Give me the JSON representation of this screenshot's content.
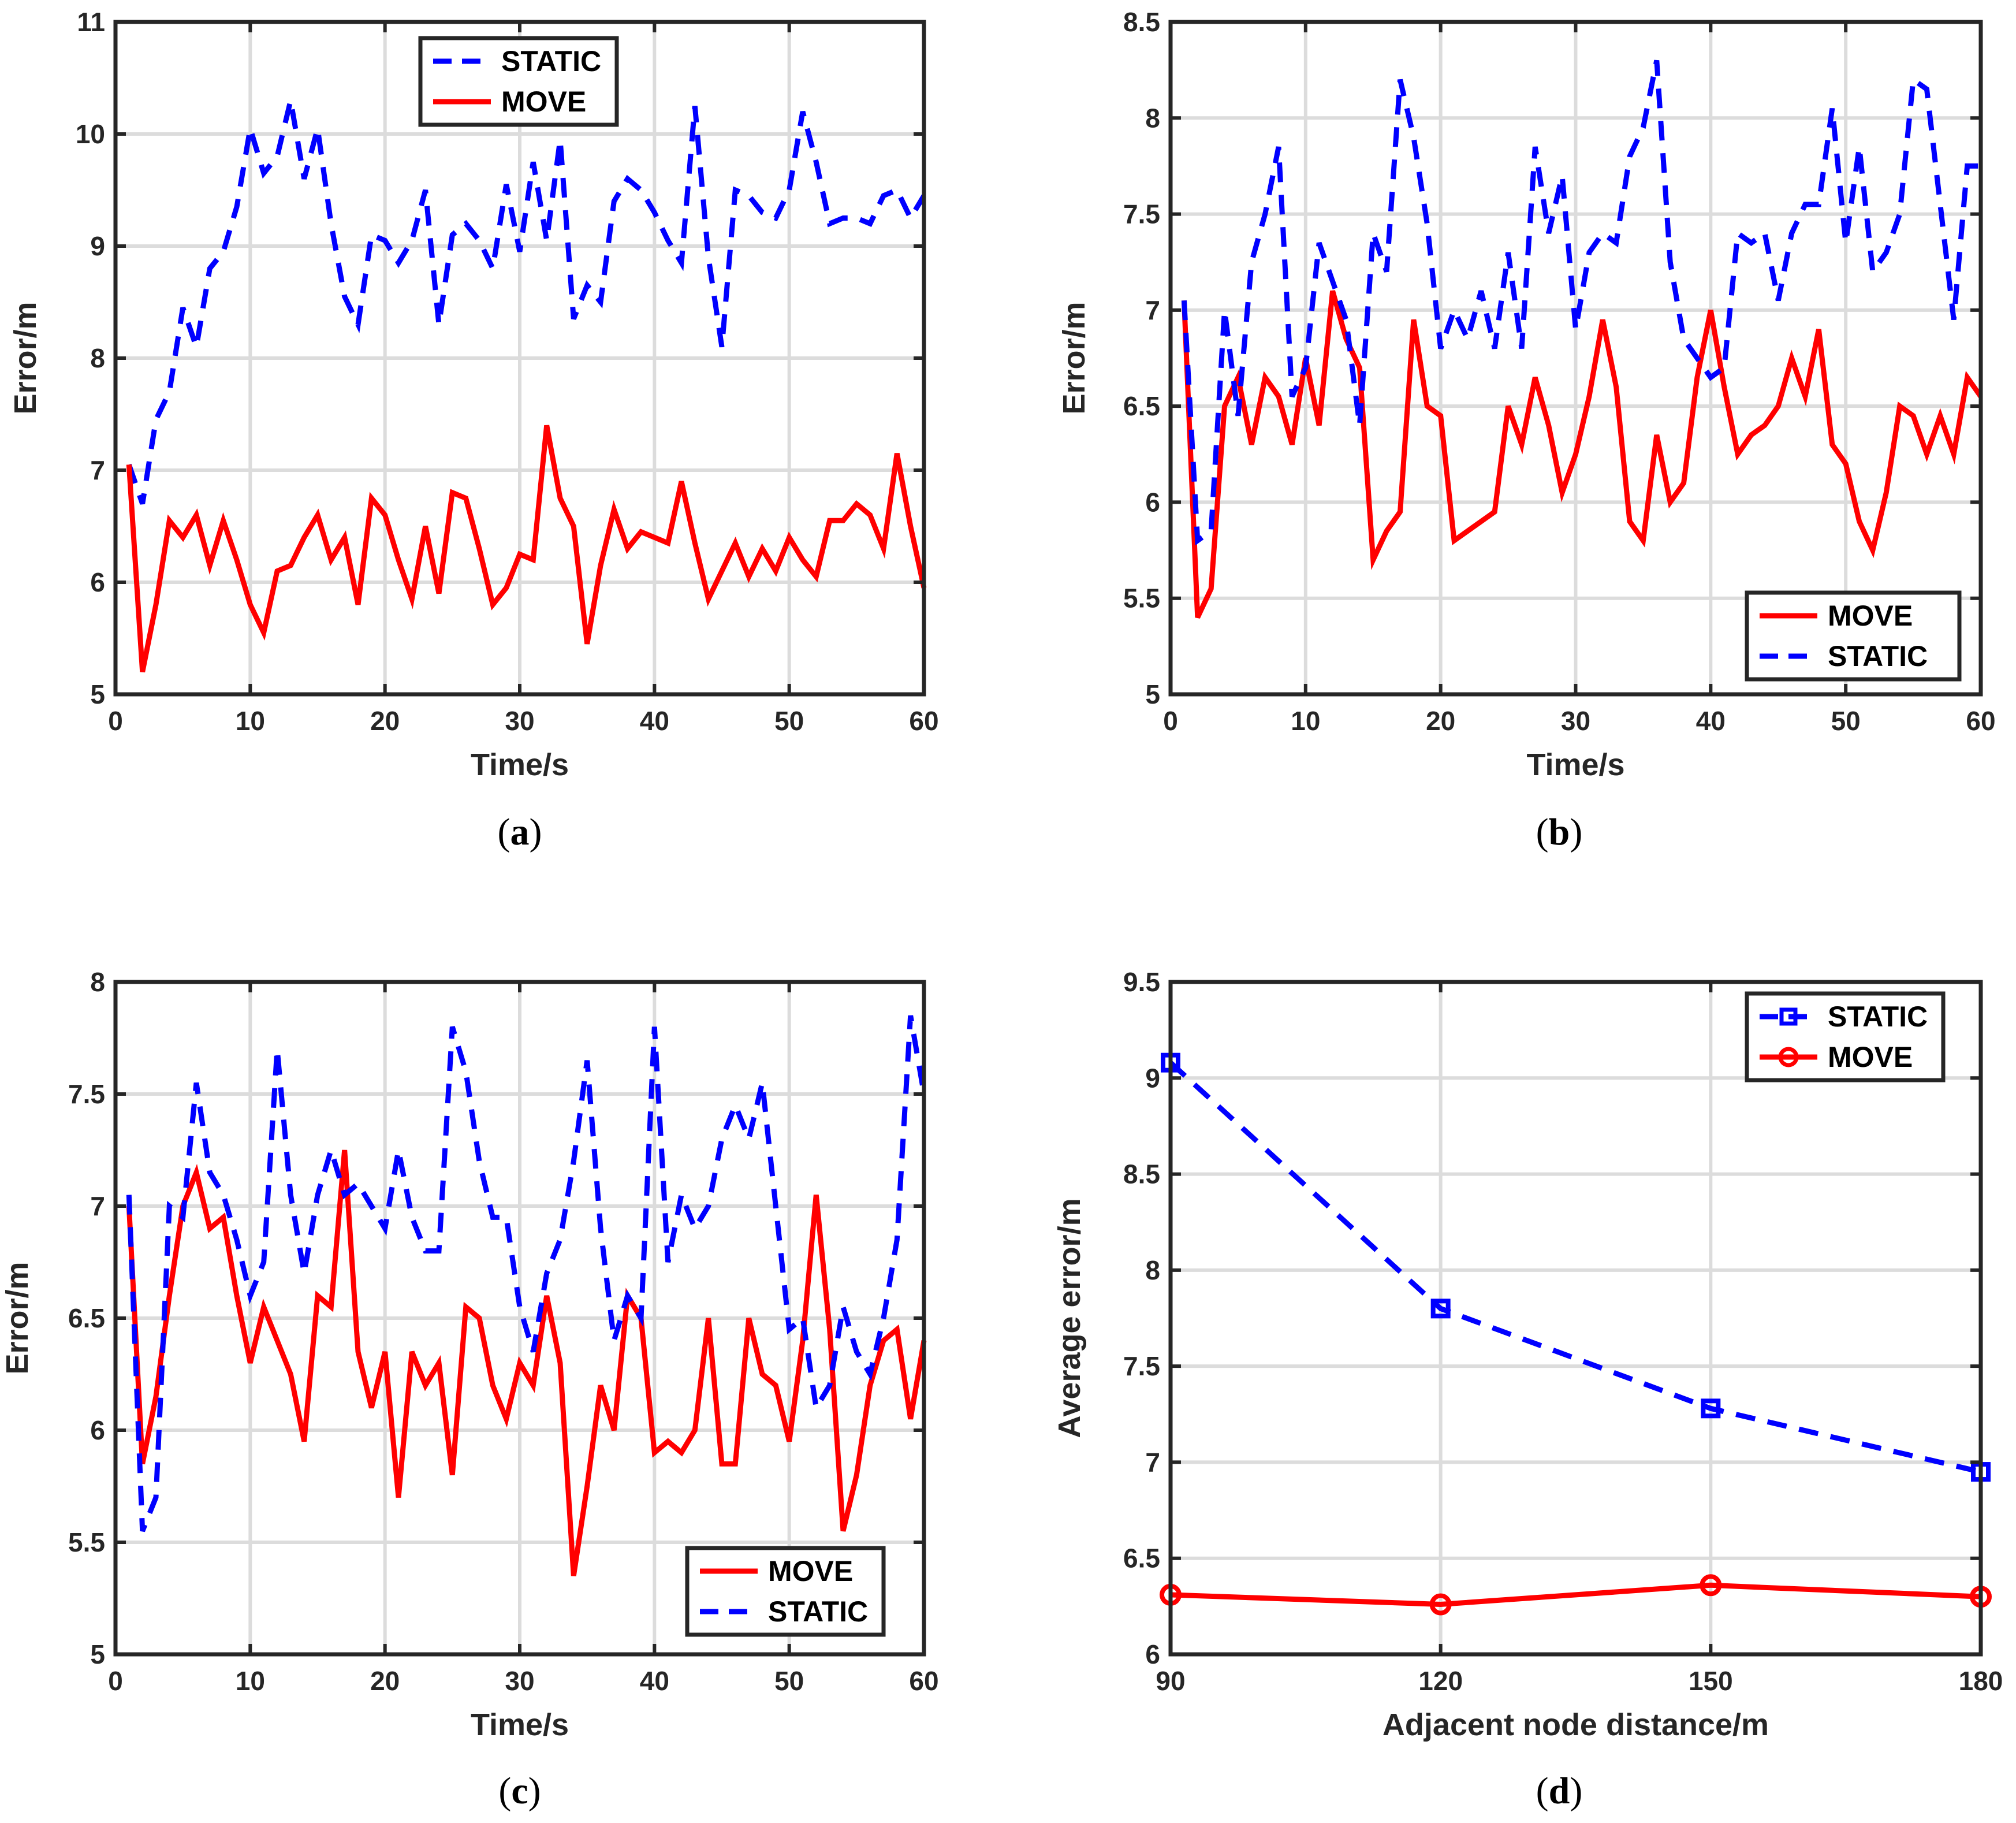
{
  "chart_data": [
    {
      "type": "line",
      "panel": "a",
      "caption_open": "(",
      "caption_letter": "a",
      "caption_close": ")",
      "xlabel": "Time/s",
      "ylabel": "Error/m",
      "xlim": [
        0,
        60
      ],
      "ylim": [
        5,
        11
      ],
      "xticks": [
        0,
        10,
        20,
        30,
        40,
        50,
        60
      ],
      "yticks": [
        5,
        6,
        7,
        8,
        9,
        10,
        11
      ],
      "grid": true,
      "legend": {
        "position": "top-center",
        "entries": [
          "STATIC",
          "MOVE"
        ]
      },
      "x": [
        1,
        2,
        3,
        4,
        5,
        6,
        7,
        8,
        9,
        10,
        11,
        12,
        13,
        14,
        15,
        16,
        17,
        18,
        19,
        20,
        21,
        22,
        23,
        24,
        25,
        26,
        27,
        28,
        29,
        30,
        31,
        32,
        33,
        34,
        35,
        36,
        37,
        38,
        39,
        40,
        41,
        42,
        43,
        44,
        45,
        46,
        47,
        48,
        49,
        50,
        51,
        52,
        53,
        54,
        55,
        56,
        57,
        58,
        59,
        60
      ],
      "series": [
        {
          "name": "STATIC",
          "color": "#0000ff",
          "style": "dashed",
          "marker": "none",
          "values": [
            7.05,
            6.7,
            7.45,
            7.7,
            8.45,
            8.1,
            8.8,
            8.95,
            9.35,
            10.05,
            9.65,
            9.8,
            10.3,
            9.6,
            10.05,
            9.2,
            8.55,
            8.3,
            9.1,
            9.05,
            8.85,
            9.05,
            9.5,
            8.3,
            9.1,
            9.2,
            9.05,
            8.8,
            9.55,
            8.95,
            9.75,
            9.05,
            9.95,
            8.35,
            8.65,
            8.5,
            9.4,
            9.6,
            9.5,
            9.3,
            9.05,
            8.85,
            10.25,
            8.9,
            8.1,
            9.5,
            9.45,
            9.3,
            9.25,
            9.5,
            10.2,
            9.75,
            9.2,
            9.25,
            9.25,
            9.2,
            9.45,
            9.5,
            9.25,
            9.45
          ]
        },
        {
          "name": "MOVE",
          "color": "#ff0000",
          "style": "solid",
          "marker": "none",
          "values": [
            7.05,
            5.2,
            5.8,
            6.55,
            6.4,
            6.6,
            6.15,
            6.55,
            6.2,
            5.8,
            5.55,
            6.1,
            6.15,
            6.4,
            6.6,
            6.2,
            6.4,
            5.8,
            6.75,
            6.6,
            6.2,
            5.85,
            6.5,
            5.9,
            6.8,
            6.75,
            6.3,
            5.8,
            5.95,
            6.25,
            6.2,
            7.4,
            6.75,
            6.5,
            5.45,
            6.15,
            6.65,
            6.3,
            6.45,
            6.4,
            6.35,
            6.9,
            6.35,
            5.85,
            6.1,
            6.35,
            6.05,
            6.3,
            6.1,
            6.4,
            6.2,
            6.05,
            6.55,
            6.55,
            6.7,
            6.6,
            6.3,
            7.15,
            6.5,
            5.95
          ]
        }
      ]
    },
    {
      "type": "line",
      "panel": "b",
      "caption_open": "(",
      "caption_letter": "b",
      "caption_close": ")",
      "xlabel": "Time/s",
      "ylabel": "Error/m",
      "xlim": [
        0,
        60
      ],
      "ylim": [
        5,
        8.5
      ],
      "xticks": [
        0,
        10,
        20,
        30,
        40,
        50,
        60
      ],
      "yticks": [
        5,
        5.5,
        6,
        6.5,
        7,
        7.5,
        8,
        8.5
      ],
      "grid": true,
      "legend": {
        "position": "bottom-right",
        "entries": [
          "MOVE",
          "STATIC"
        ]
      },
      "x": [
        1,
        2,
        3,
        4,
        5,
        6,
        7,
        8,
        9,
        10,
        11,
        12,
        13,
        14,
        15,
        16,
        17,
        18,
        19,
        20,
        21,
        22,
        23,
        24,
        25,
        26,
        27,
        28,
        29,
        30,
        31,
        32,
        33,
        34,
        35,
        36,
        37,
        38,
        39,
        40,
        41,
        42,
        43,
        44,
        45,
        46,
        47,
        48,
        49,
        50,
        51,
        52,
        53,
        54,
        55,
        56,
        57,
        58,
        59,
        60
      ],
      "series": [
        {
          "name": "MOVE",
          "color": "#ff0000",
          "style": "solid",
          "marker": "none",
          "values": [
            7.05,
            5.4,
            5.55,
            6.5,
            6.65,
            6.3,
            6.65,
            6.55,
            6.3,
            6.75,
            6.4,
            7.1,
            6.85,
            6.7,
            5.7,
            5.85,
            5.95,
            6.95,
            6.5,
            6.45,
            5.8,
            5.85,
            5.9,
            5.95,
            6.5,
            6.3,
            6.65,
            6.4,
            6.05,
            6.25,
            6.55,
            6.95,
            6.6,
            5.9,
            5.8,
            6.35,
            6.0,
            6.1,
            6.65,
            7.0,
            6.6,
            6.25,
            6.35,
            6.4,
            6.5,
            6.75,
            6.55,
            6.9,
            6.3,
            6.2,
            5.9,
            5.75,
            6.05,
            6.5,
            6.45,
            6.25,
            6.45,
            6.25,
            6.65,
            6.55
          ]
        },
        {
          "name": "STATIC",
          "color": "#0000ff",
          "style": "dashed",
          "marker": "none",
          "values": [
            7.05,
            5.8,
            5.85,
            7.0,
            6.45,
            7.25,
            7.5,
            7.85,
            6.55,
            6.7,
            7.35,
            7.15,
            6.95,
            6.4,
            7.4,
            7.2,
            8.2,
            7.9,
            7.45,
            6.8,
            7.0,
            6.85,
            7.1,
            6.8,
            7.3,
            6.8,
            7.85,
            7.4,
            7.7,
            6.9,
            7.3,
            7.4,
            7.35,
            7.8,
            7.95,
            8.3,
            7.25,
            6.85,
            6.75,
            6.65,
            6.7,
            7.4,
            7.35,
            7.4,
            7.05,
            7.4,
            7.55,
            7.55,
            8.05,
            7.35,
            7.85,
            7.2,
            7.3,
            7.5,
            8.2,
            8.15,
            7.55,
            6.95,
            7.75,
            7.75
          ]
        }
      ]
    },
    {
      "type": "line",
      "panel": "c",
      "caption_open": "(",
      "caption_letter": "c",
      "caption_close": ")",
      "xlabel": "Time/s",
      "ylabel": "Error/m",
      "xlim": [
        0,
        60
      ],
      "ylim": [
        5,
        8
      ],
      "xticks": [
        0,
        10,
        20,
        30,
        40,
        50,
        60
      ],
      "yticks": [
        5,
        5.5,
        6,
        6.5,
        7,
        7.5,
        8
      ],
      "grid": true,
      "legend": {
        "position": "bottom-right",
        "entries": [
          "MOVE",
          "STATIC"
        ]
      },
      "x": [
        1,
        2,
        3,
        4,
        5,
        6,
        7,
        8,
        9,
        10,
        11,
        12,
        13,
        14,
        15,
        16,
        17,
        18,
        19,
        20,
        21,
        22,
        23,
        24,
        25,
        26,
        27,
        28,
        29,
        30,
        31,
        32,
        33,
        34,
        35,
        36,
        37,
        38,
        39,
        40,
        41,
        42,
        43,
        44,
        45,
        46,
        47,
        48,
        49,
        50,
        51,
        52,
        53,
        54,
        55,
        56,
        57,
        58,
        59,
        60
      ],
      "series": [
        {
          "name": "MOVE",
          "color": "#ff0000",
          "style": "solid",
          "marker": "none",
          "values": [
            7.0,
            5.85,
            6.15,
            6.6,
            7.0,
            7.15,
            6.9,
            6.95,
            6.6,
            6.3,
            6.55,
            6.4,
            6.25,
            5.95,
            6.6,
            6.55,
            7.25,
            6.35,
            6.1,
            6.35,
            5.7,
            6.35,
            6.2,
            6.3,
            5.8,
            6.55,
            6.5,
            6.2,
            6.05,
            6.3,
            6.2,
            6.6,
            6.3,
            5.35,
            5.75,
            6.2,
            6.0,
            6.6,
            6.5,
            5.9,
            5.95,
            5.9,
            6.0,
            6.5,
            5.85,
            5.85,
            6.5,
            6.25,
            6.2,
            5.95,
            6.4,
            7.05,
            6.45,
            5.55,
            5.8,
            6.2,
            6.4,
            6.45,
            6.05,
            6.4
          ]
        },
        {
          "name": "STATIC",
          "color": "#0000ff",
          "style": "dashed",
          "marker": "none",
          "values": [
            7.05,
            5.55,
            5.7,
            7.0,
            6.95,
            7.55,
            7.15,
            7.05,
            6.85,
            6.6,
            6.75,
            7.7,
            7.05,
            6.7,
            7.05,
            7.25,
            7.05,
            7.1,
            7.0,
            6.9,
            7.25,
            6.95,
            6.8,
            6.8,
            7.8,
            7.6,
            7.2,
            6.95,
            6.95,
            6.55,
            6.35,
            6.7,
            6.85,
            7.2,
            7.65,
            6.9,
            6.4,
            6.6,
            6.5,
            7.8,
            6.75,
            7.05,
            6.9,
            7.0,
            7.3,
            7.45,
            7.3,
            7.55,
            7.0,
            6.45,
            6.5,
            6.1,
            6.2,
            6.55,
            6.35,
            6.25,
            6.5,
            6.85,
            7.85,
            7.5
          ]
        }
      ]
    },
    {
      "type": "line",
      "panel": "d",
      "caption_open": "(",
      "caption_letter": "d",
      "caption_close": ")",
      "xlabel": "Adjacent node distance/m",
      "ylabel": "Average error/m",
      "xlim": [
        90,
        180
      ],
      "ylim": [
        6,
        9.5
      ],
      "xticks": [
        90,
        120,
        150,
        180
      ],
      "yticks": [
        6,
        6.5,
        7,
        7.5,
        8,
        8.5,
        9,
        9.5
      ],
      "grid": true,
      "legend": {
        "position": "top-right",
        "entries": [
          "STATIC",
          "MOVE"
        ]
      },
      "x": [
        90,
        120,
        150,
        180
      ],
      "series": [
        {
          "name": "STATIC",
          "color": "#0000ff",
          "style": "dashed",
          "marker": "square",
          "values": [
            9.08,
            7.8,
            7.28,
            6.95
          ]
        },
        {
          "name": "MOVE",
          "color": "#ff0000",
          "style": "solid",
          "marker": "circle",
          "values": [
            6.31,
            6.26,
            6.36,
            6.3
          ]
        }
      ]
    }
  ]
}
